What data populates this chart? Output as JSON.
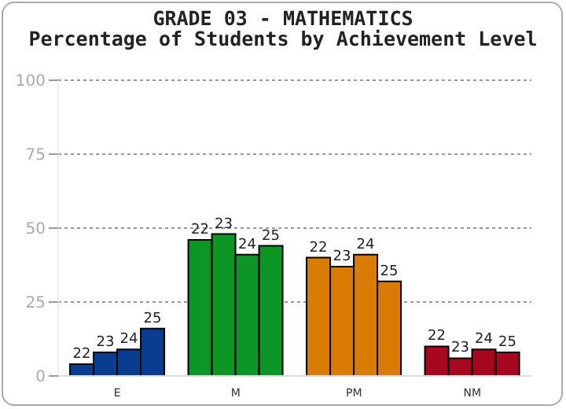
{
  "chart_data": {
    "type": "bar",
    "title": "GRADE 03 - MATHEMATICS",
    "subtitle": "Percentage of Students by Achievement Level",
    "categories": [
      "E",
      "M",
      "PM",
      "NM"
    ],
    "series": [
      {
        "name": "22",
        "colors": [
          "#0a3d8f",
          "#0b9625",
          "#d97b05",
          "#a8081f"
        ],
        "values": [
          4,
          46,
          40,
          10
        ]
      },
      {
        "name": "23",
        "colors": [
          "#0a3d8f",
          "#0b9625",
          "#d97b05",
          "#a8081f"
        ],
        "values": [
          8,
          48,
          37,
          6
        ]
      },
      {
        "name": "24",
        "colors": [
          "#0a3d8f",
          "#0b9625",
          "#d97b05",
          "#a8081f"
        ],
        "values": [
          9,
          41,
          41,
          9
        ]
      },
      {
        "name": "25",
        "colors": [
          "#0a3d8f",
          "#0b9625",
          "#d97b05",
          "#a8081f"
        ],
        "values": [
          16,
          44,
          32,
          8
        ]
      }
    ],
    "ylim": [
      0,
      100
    ],
    "yticks": [
      0,
      25,
      50,
      75,
      100
    ],
    "grid": "y",
    "legend": false
  }
}
